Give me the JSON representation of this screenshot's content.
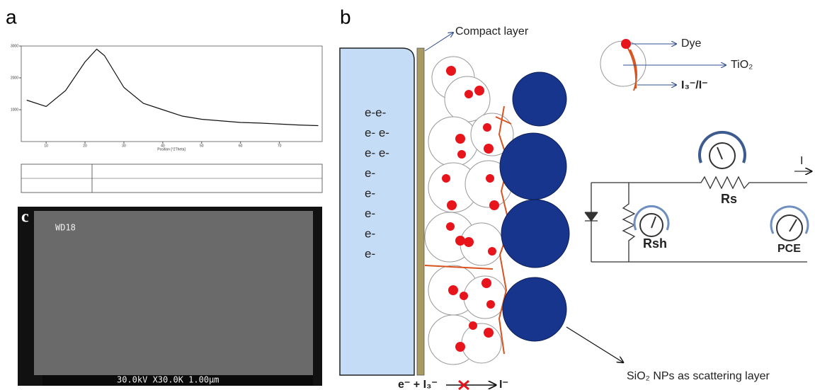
{
  "chart_data": {
    "type": "line",
    "xlabel": "Position [°2Theta]",
    "x": [
      5,
      10,
      15,
      20,
      23,
      25,
      30,
      35,
      40,
      45,
      50,
      55,
      60,
      65,
      70,
      75,
      80
    ],
    "values": [
      1300,
      1100,
      1600,
      2500,
      2900,
      2700,
      1700,
      1200,
      1000,
      800,
      700,
      650,
      600,
      580,
      550,
      520,
      500
    ],
    "color": "#111111",
    "xlim": [
      3.6,
      81
    ],
    "ylim": [
      0,
      3000
    ],
    "xticks": [
      10,
      20,
      30,
      40,
      50,
      60,
      70
    ],
    "yticks": [
      1000,
      2000,
      3000
    ]
  },
  "panel_labels": {
    "a": "a",
    "b": "b",
    "c": "c"
  },
  "sem": {
    "wd": "WD18",
    "info": "30.0kV X30.0K 1.00μm"
  },
  "diagram": {
    "compact_layer": "Compact layer",
    "dye": "Dye",
    "tio2": "TiO₂",
    "electrolyte": "I₃⁻/I⁻",
    "electrons": [
      "e-e-",
      "e- e-",
      "e- e-",
      "e-",
      "e-",
      "e-",
      "e-",
      "e-"
    ],
    "rs": "Rs",
    "rsh": "Rsh",
    "pce": "PCE",
    "current": "I",
    "sio2": "SiO₂ NPs as scattering layer",
    "reaction_left": "e⁻ + I₃⁻",
    "reaction_right": "I⁻"
  }
}
